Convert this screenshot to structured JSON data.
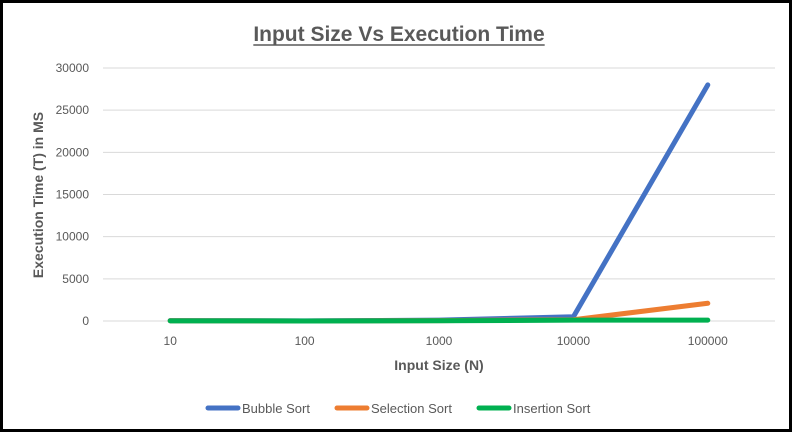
{
  "chart_data": {
    "type": "line",
    "title": "Input Size Vs Execution Time",
    "xlabel": "Input Size (N)",
    "ylabel": "Execution Time (T) in MS",
    "categories": [
      "10",
      "100",
      "1000",
      "10000",
      "100000"
    ],
    "yticks": [
      "0",
      "5000",
      "10000",
      "15000",
      "20000",
      "25000",
      "30000"
    ],
    "ylim": [
      0,
      30000
    ],
    "grid": true,
    "legend_position": "bottom",
    "series": [
      {
        "name": "Bubble Sort",
        "color": "#4472C4",
        "values": [
          50,
          10,
          100,
          500,
          28000
        ]
      },
      {
        "name": "Selection Sort",
        "color": "#ED7D31",
        "values": [
          30,
          5,
          50,
          150,
          2100
        ]
      },
      {
        "name": "Insertion Sort",
        "color": "#00B050",
        "values": [
          20,
          5,
          30,
          100,
          100
        ]
      }
    ]
  }
}
